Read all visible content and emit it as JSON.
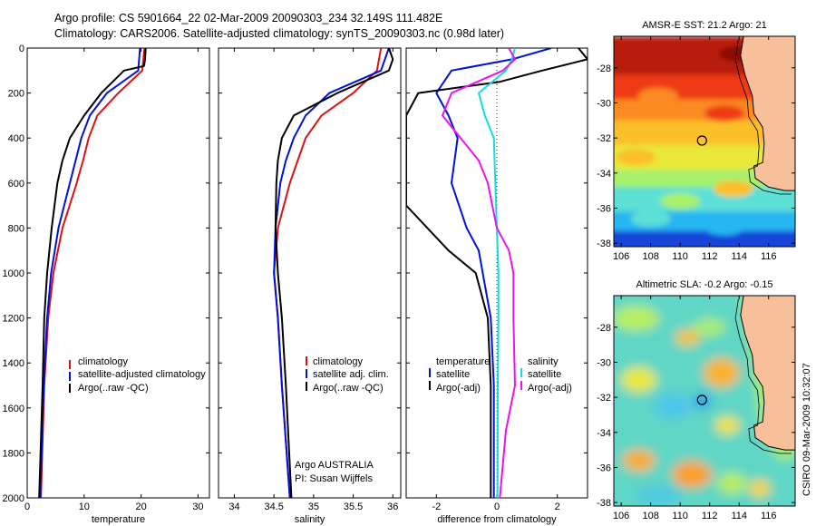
{
  "titles": {
    "line1": "Argo profile: CS 5901664_22 02-Mar-2009 20090303_234 32.149S 111.482E",
    "line2": "Climatology: CARS2006. Satellite-adjusted climatology: synTS_20090303.nc (0.98d later)"
  },
  "footer_text": {
    "side_stamp": "CSIRO 09-Mar-2009 10:32:07",
    "owner": "Argo AUSTRALIA",
    "pi": "PI: Susan Wijffels"
  },
  "colors": {
    "climatology": "#dd1111",
    "satellite": "#0010dd",
    "argo": "#000000",
    "sat_salinity": "#11dddd",
    "argo_salinity_adj": "#ee11ee",
    "land": "#f7c09b"
  },
  "chart_data": [
    {
      "type": "line",
      "xlabel": "temperature",
      "ylabel": "",
      "xlim": [
        0,
        32
      ],
      "ylim": [
        2000,
        0
      ],
      "x_ticks": [
        0,
        10,
        20,
        30
      ],
      "y_ticks": [
        0,
        200,
        400,
        600,
        800,
        1000,
        1200,
        1400,
        1600,
        1800,
        2000
      ],
      "legend": [
        "climatology",
        "satellite-adjusted climatology",
        "Argo(..raw -QC)"
      ],
      "legend_position": "lower-right",
      "series": [
        {
          "name": "climatology",
          "depth": [
            0,
            100,
            200,
            300,
            400,
            500,
            600,
            800,
            1000,
            1200,
            1500,
            2000
          ],
          "values": [
            20.6,
            20.2,
            16,
            12.3,
            10.8,
            9.8,
            8.7,
            6.2,
            4.6,
            3.7,
            3.0,
            2.4
          ]
        },
        {
          "name": "satellite-adjusted climatology",
          "depth": [
            0,
            100,
            200,
            300,
            400,
            500,
            600,
            800,
            1000,
            1200,
            1500,
            2000
          ],
          "values": [
            19.8,
            19.5,
            14,
            11,
            9.5,
            8.5,
            7.5,
            5.5,
            4.2,
            3.5,
            2.9,
            2.3
          ]
        },
        {
          "name": "Argo(..raw -QC)",
          "depth": [
            0,
            50,
            80,
            100,
            200,
            300,
            400,
            500,
            600,
            800,
            1000,
            1200,
            1500,
            2000
          ],
          "values": [
            20.8,
            20.7,
            20.5,
            17,
            13,
            10,
            7.5,
            6.2,
            5.3,
            4.3,
            3.5,
            3.0,
            2.7,
            2.1
          ]
        }
      ]
    },
    {
      "type": "line",
      "xlabel": "salinity",
      "ylabel": "",
      "xlim": [
        33.8,
        36.1
      ],
      "ylim": [
        2000,
        0
      ],
      "x_ticks": [
        34,
        34.5,
        35,
        35.5,
        36
      ],
      "legend": [
        "climatology",
        "satellite adj. clim.",
        "Argo(..raw -QC)"
      ],
      "legend_position": "lower-right",
      "series": [
        {
          "name": "climatology",
          "depth": [
            0,
            100,
            200,
            300,
            400,
            500,
            600,
            800,
            1000,
            1200,
            1500,
            2000
          ],
          "values": [
            35.85,
            35.8,
            35.5,
            35.1,
            34.9,
            34.8,
            34.7,
            34.55,
            34.5,
            34.55,
            34.6,
            34.7
          ]
        },
        {
          "name": "satellite adj. clim.",
          "depth": [
            0,
            100,
            200,
            300,
            400,
            500,
            600,
            800,
            1000,
            1200,
            1500,
            2000
          ],
          "values": [
            35.95,
            35.85,
            35.2,
            34.9,
            34.75,
            34.65,
            34.58,
            34.52,
            34.5,
            34.55,
            34.6,
            34.7
          ]
        },
        {
          "name": "Argo(..raw -QC)",
          "depth": [
            0,
            50,
            100,
            200,
            300,
            400,
            500,
            600,
            800,
            1000,
            1200,
            1500,
            2000
          ],
          "values": [
            35.95,
            36.0,
            35.95,
            35.3,
            34.75,
            34.6,
            34.55,
            34.53,
            34.52,
            34.55,
            34.6,
            34.65,
            34.72
          ]
        }
      ]
    },
    {
      "type": "line",
      "xlabel": "difference from climatology",
      "ylabel": "",
      "xlim": [
        -3,
        3
      ],
      "ylim": [
        2000,
        0
      ],
      "x_ticks": [
        -2,
        0,
        2
      ],
      "legend_groups": [
        {
          "title": "temperature",
          "items": [
            "satellite",
            "Argo(-adj)"
          ]
        },
        {
          "title": "salinity",
          "items": [
            "satellite",
            "Argo(-adj)"
          ]
        }
      ],
      "series": [
        {
          "name": "satellite",
          "quantity": "temperature",
          "depth": [
            0,
            50,
            100,
            200,
            300,
            400,
            600,
            800,
            900,
            1200,
            1500,
            2000
          ],
          "values": [
            1.8,
            0.5,
            -1.5,
            -2.0,
            -1.6,
            -1.3,
            -1.5,
            -1.0,
            -0.6,
            -0.2,
            -0.1,
            -0.1
          ]
        },
        {
          "name": "Argo(-adj)",
          "quantity": "temperature",
          "depth": [
            0,
            50,
            100,
            150,
            200,
            300,
            400,
            700,
            900,
            1000,
            1200,
            1500,
            2000
          ],
          "values": [
            2.7,
            3.0,
            1.5,
            0.1,
            -2.6,
            -3.0,
            -3.0,
            -3.0,
            -1.6,
            -0.7,
            -0.3,
            -0.2,
            -0.2
          ]
        },
        {
          "name": "satellite",
          "quantity": "salinity",
          "depth": [
            0,
            50,
            100,
            200,
            300,
            400,
            600,
            800,
            1000,
            1200,
            1500,
            2000
          ],
          "values": [
            0.6,
            0.5,
            0.3,
            -0.6,
            -0.4,
            -0.1,
            -0.05,
            0,
            0.05,
            0.05,
            0.03,
            0.02
          ]
        },
        {
          "name": "Argo(-adj)",
          "quantity": "salinity",
          "depth": [
            0,
            50,
            100,
            200,
            300,
            400,
            500,
            600,
            800,
            900,
            1000,
            1200,
            1500,
            1700,
            2000
          ],
          "values": [
            0.4,
            0.6,
            0.2,
            -1.5,
            -1.8,
            -1.2,
            -0.6,
            -0.3,
            0,
            0.4,
            0.55,
            0.55,
            0.6,
            0.3,
            0.1
          ]
        }
      ]
    },
    {
      "type": "heatmap",
      "title": "AMSR-E SST: 21.2  Argo: 21",
      "xlim": [
        105.5,
        117.8
      ],
      "ylim": [
        -38.2,
        -26.2
      ],
      "x_ticks": [
        106,
        108,
        110,
        112,
        114,
        116
      ],
      "y_ticks": [
        -28,
        -30,
        -32,
        -34,
        -36,
        -38
      ],
      "marker": {
        "lon": 111.482,
        "lat": -32.149
      }
    },
    {
      "type": "heatmap",
      "title": "Altimetric SLA: -0.2  Argo: -0.15",
      "xlim": [
        105.5,
        117.8
      ],
      "ylim": [
        -38.2,
        -26.2
      ],
      "x_ticks": [
        106,
        108,
        110,
        112,
        114,
        116
      ],
      "y_ticks": [
        -28,
        -30,
        -32,
        -34,
        -36,
        -38
      ],
      "marker": {
        "lon": 111.482,
        "lat": -32.149
      }
    }
  ]
}
